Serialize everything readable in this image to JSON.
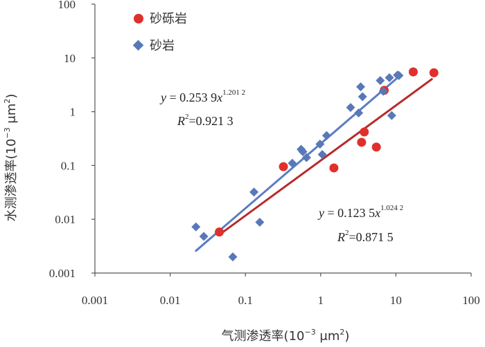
{
  "chart_data": {
    "type": "scatter",
    "xlabel": "气测渗透率",
    "xlabel_unit": "(10",
    "xlabel_unit_exp": "−3",
    "xlabel_unit_tail": " μm",
    "xlabel_unit_sq": "2",
    "xlabel_unit_close": ")",
    "ylabel": "水测渗透率",
    "ylabel_unit": "(10",
    "ylabel_unit_exp": "−3",
    "ylabel_unit_tail": " μm",
    "ylabel_unit_sq": "2",
    "ylabel_unit_close": ")",
    "x_scale": "log",
    "y_scale": "log",
    "xlim": [
      0.001,
      100
    ],
    "ylim": [
      0.001,
      100
    ],
    "x_ticks": [
      "0.001",
      "0.01",
      "0.1",
      "1",
      "10",
      "100"
    ],
    "y_ticks": [
      "0.001",
      "0.01",
      "0.1",
      "1",
      "10",
      "100"
    ],
    "legend_position": "top-left",
    "series": [
      {
        "name": "砂砾岩",
        "color": "#e0302c",
        "marker": "circle",
        "points": [
          [
            0.045,
            0.0058
          ],
          [
            0.32,
            0.095
          ],
          [
            1.5,
            0.09
          ],
          [
            3.5,
            0.27
          ],
          [
            3.8,
            0.42
          ],
          [
            5.5,
            0.22
          ],
          [
            7.0,
            2.5
          ],
          [
            17,
            5.5
          ],
          [
            32,
            5.3
          ]
        ],
        "trend": {
          "coef": 0.1235,
          "exp": 1.0242,
          "x_range": [
            0.045,
            30
          ],
          "color": "#b82a2a",
          "eq_y": "y",
          "eq_mid": " = 0.123 5",
          "eq_x": "x",
          "eq_exp": "1.024 2",
          "r2_r": "R",
          "r2_sup": "2",
          "r2_val": "=0.871 5"
        }
      },
      {
        "name": "砂岩",
        "color": "#5878b8",
        "marker": "diamond",
        "points": [
          [
            0.022,
            0.0072
          ],
          [
            0.028,
            0.0048
          ],
          [
            0.068,
            0.002
          ],
          [
            0.13,
            0.032
          ],
          [
            0.155,
            0.0088
          ],
          [
            0.42,
            0.11
          ],
          [
            0.55,
            0.2
          ],
          [
            0.58,
            0.18
          ],
          [
            0.65,
            0.14
          ],
          [
            0.98,
            0.25
          ],
          [
            1.05,
            0.16
          ],
          [
            1.2,
            0.36
          ],
          [
            2.5,
            1.2
          ],
          [
            3.2,
            0.95
          ],
          [
            3.4,
            2.9
          ],
          [
            3.6,
            1.9
          ],
          [
            6.2,
            3.8
          ],
          [
            6.8,
            2.4
          ],
          [
            8.2,
            4.3
          ],
          [
            8.8,
            0.85
          ],
          [
            10.5,
            4.8
          ],
          [
            11,
            4.7
          ]
        ],
        "trend": {
          "coef": 0.2539,
          "exp": 1.2012,
          "x_range": [
            0.022,
            10
          ],
          "color": "#5a7cc2",
          "eq_y": "y",
          "eq_mid": " = 0.253 9",
          "eq_x": "x",
          "eq_exp": "1.201 2",
          "r2_r": "R",
          "r2_sup": "2",
          "r2_val": "=0.921 3"
        }
      }
    ]
  }
}
